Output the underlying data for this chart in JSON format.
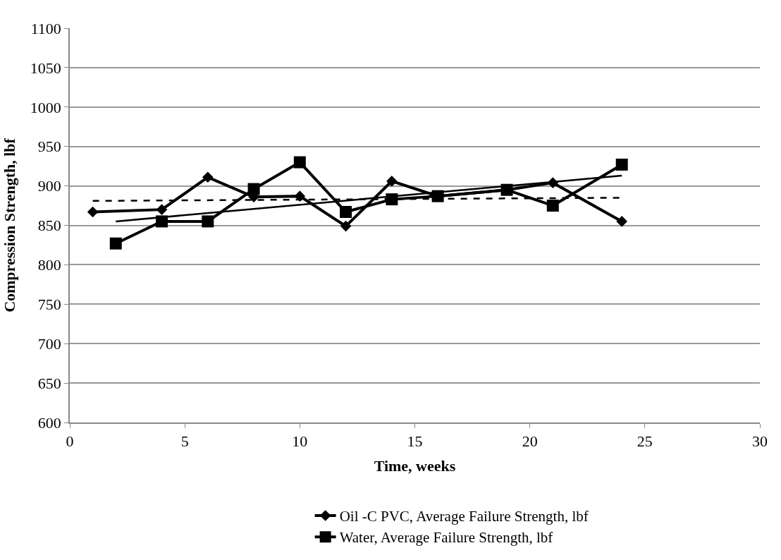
{
  "chart_data": {
    "type": "line",
    "xlabel": "Time, weeks",
    "ylabel": "Compression Strength, lbf",
    "x": [
      1,
      4,
      6,
      8,
      10,
      12,
      14,
      16,
      19,
      21,
      24
    ],
    "series": [
      {
        "name": "Oil -C PVC, Average Failure Strength, lbf",
        "color": "#000000",
        "marker": "diamond",
        "values": [
          867,
          870,
          911,
          886,
          887,
          849,
          906,
          887,
          895,
          904,
          855
        ]
      },
      {
        "name": "Water, Average Failure Strength, lbf",
        "color": "#000000",
        "marker": "square",
        "x": [
          2,
          4,
          6,
          8,
          10,
          12,
          14,
          16,
          19,
          21,
          24
        ],
        "values": [
          827,
          855,
          855,
          896,
          930,
          867,
          883,
          887,
          895,
          875,
          927
        ]
      },
      {
        "color": "#000000",
        "marker": "none",
        "line_style": "dashed",
        "x": [
          1,
          24
        ],
        "values": [
          881,
          885
        ]
      },
      {
        "color": "#000000",
        "marker": "none",
        "line_style": "solid",
        "x": [
          2,
          24
        ],
        "values": [
          855,
          913
        ]
      }
    ],
    "xlim": [
      0,
      30
    ],
    "xticks": [
      0,
      5,
      10,
      15,
      20,
      25,
      30
    ],
    "ylim": [
      600,
      1100
    ],
    "yticks": [
      600,
      650,
      700,
      750,
      800,
      850,
      900,
      950,
      1000,
      1050,
      1100
    ],
    "grid": "y",
    "legend": "bottom"
  }
}
